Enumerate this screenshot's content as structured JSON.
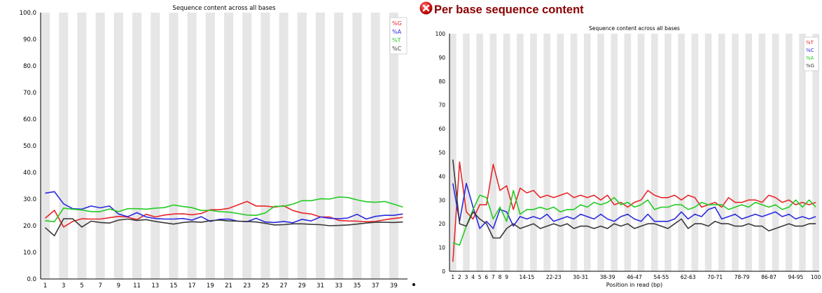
{
  "header": {
    "title": "Per base sequence content",
    "status_icon": "error-icon"
  },
  "chart_data": [
    {
      "type": "line",
      "title": "Sequence content across all bases",
      "xlabel": "",
      "ylabel": "",
      "ylim": [
        0,
        100
      ],
      "yticks": [
        "0.0",
        "10.0",
        "20.0",
        "30.0",
        "40.0",
        "50.0",
        "60.0",
        "70.0",
        "80.0",
        "90.0",
        "100.0"
      ],
      "x": [
        "1",
        "2",
        "3",
        "4",
        "5",
        "6",
        "7",
        "8",
        "9",
        "10",
        "11",
        "12",
        "13",
        "14",
        "15",
        "16",
        "17",
        "18",
        "19",
        "20",
        "21",
        "22",
        "23",
        "24",
        "25",
        "26",
        "27",
        "28",
        "29",
        "30",
        "31",
        "32",
        "33",
        "34",
        "35",
        "36",
        "37",
        "38",
        "39",
        "40"
      ],
      "xtick_labels": [
        "1",
        "3",
        "5",
        "7",
        "9",
        "11",
        "13",
        "15",
        "17",
        "19",
        "21",
        "23",
        "25",
        "27",
        "29",
        "31",
        "33",
        "35",
        "37",
        "39"
      ],
      "grid": "alternating vertical bands",
      "legend_position": "top-right",
      "series": [
        {
          "name": "%G",
          "color": "#e8262a",
          "values": [
            22.8,
            25.8,
            19.5,
            21.6,
            22.6,
            22.5,
            22.5,
            23.0,
            23.5,
            23.2,
            22.3,
            24.3,
            23.3,
            24.0,
            24.4,
            24.5,
            24.1,
            24.6,
            26.0,
            26.0,
            26.5,
            27.8,
            29.1,
            27.4,
            27.4,
            27.0,
            27.5,
            25.7,
            24.8,
            24.4,
            23.3,
            23.3,
            22.0,
            21.8,
            21.7,
            21.5,
            21.6,
            22.2,
            22.7,
            23.1
          ]
        },
        {
          "name": "%A",
          "color": "#2a2ae0",
          "values": [
            32.2,
            32.8,
            28.2,
            26.4,
            26.2,
            27.4,
            26.7,
            27.4,
            24.4,
            23.4,
            24.9,
            23.3,
            22.7,
            22.5,
            22.5,
            22.7,
            22.1,
            23.4,
            21.6,
            22.4,
            22.5,
            21.7,
            21.5,
            22.8,
            21.4,
            21.2,
            21.6,
            21.1,
            22.4,
            21.8,
            23.3,
            22.8,
            22.6,
            22.9,
            24.3,
            22.5,
            23.5,
            23.9,
            23.9,
            24.4
          ]
        },
        {
          "name": "%T",
          "color": "#22cc22",
          "values": [
            21.9,
            21.5,
            26.6,
            26.2,
            25.9,
            25.3,
            25.3,
            26.3,
            25.3,
            26.4,
            26.4,
            26.2,
            26.6,
            26.8,
            27.8,
            27.2,
            26.8,
            25.7,
            25.8,
            25.3,
            25.1,
            24.6,
            24.0,
            23.9,
            24.8,
            27.3,
            27.3,
            28.1,
            29.4,
            29.4,
            30.1,
            30.0,
            30.8,
            30.6,
            29.7,
            29.0,
            28.8,
            29.1,
            28.1,
            27.0
          ]
        },
        {
          "name": "%C",
          "color": "#3a3a3a",
          "values": [
            19.3,
            16.2,
            22.6,
            22.6,
            19.5,
            21.7,
            21.2,
            21.0,
            22.1,
            22.5,
            22.0,
            22.3,
            21.6,
            21.1,
            20.6,
            21.2,
            21.5,
            21.3,
            21.9,
            22.1,
            21.8,
            21.7,
            21.6,
            21.4,
            20.9,
            20.3,
            20.4,
            20.7,
            20.7,
            20.5,
            20.4,
            20.0,
            20.1,
            20.3,
            20.6,
            21.0,
            21.3,
            21.3,
            21.2,
            21.4
          ]
        }
      ]
    },
    {
      "type": "line",
      "title": "Sequence content across all bases",
      "xlabel": "Position in read (bp)",
      "ylabel": "",
      "ylim": [
        0,
        100
      ],
      "yticks": [
        "0",
        "10",
        "20",
        "30",
        "40",
        "50",
        "60",
        "70",
        "80",
        "90",
        "100"
      ],
      "x": [
        "1",
        "2",
        "3",
        "4",
        "5",
        "6",
        "7",
        "8",
        "9",
        "10-11",
        "12-13",
        "14-15",
        "16-17",
        "18-19",
        "20-21",
        "22-23",
        "24-25",
        "26-27",
        "28-29",
        "30-31",
        "32-33",
        "34-35",
        "36-37",
        "38-39",
        "40-41",
        "42-43",
        "44-45",
        "46-47",
        "48-49",
        "50-51",
        "52-53",
        "54-55",
        "56-57",
        "58-59",
        "60-61",
        "62-63",
        "64-65",
        "66-67",
        "68-69",
        "70-71",
        "72-73",
        "74-75",
        "76-77",
        "78-79",
        "80-81",
        "82-83",
        "84-85",
        "86-87",
        "88-89",
        "90-91",
        "92-93",
        "94-95",
        "96-97",
        "98-99",
        "100"
      ],
      "xtick_labels": [
        "1",
        "2",
        "3",
        "4",
        "5",
        "6",
        "7",
        "8",
        "9",
        "14-15",
        "22-23",
        "30-31",
        "38-39",
        "46-47",
        "54-55",
        "62-63",
        "70-71",
        "78-79",
        "86-87",
        "94-95",
        "100"
      ],
      "grid": "alternating vertical bands",
      "legend_position": "top-right",
      "series": [
        {
          "name": "%T",
          "color": "#e8262a",
          "values": [
            4,
            46,
            25,
            22,
            28,
            28,
            45,
            34,
            36,
            26,
            35,
            33,
            34,
            31,
            32,
            31,
            32,
            33,
            31,
            32,
            31,
            32,
            30,
            32,
            28,
            29,
            27,
            29,
            30,
            34,
            32,
            31,
            31,
            32,
            30,
            32,
            31,
            27,
            28,
            29,
            27,
            31,
            29,
            29,
            30,
            30,
            29,
            32,
            31,
            29,
            30,
            28,
            29,
            28,
            29
          ]
        },
        {
          "name": "%C",
          "color": "#2a2ae0",
          "values": [
            37,
            21,
            37,
            27,
            18,
            21,
            18,
            26,
            25,
            19,
            23,
            22,
            23,
            22,
            24,
            21,
            22,
            23,
            22,
            24,
            23,
            22,
            24,
            22,
            21,
            23,
            24,
            22,
            21,
            24,
            21,
            21,
            21,
            22,
            25,
            22,
            24,
            23,
            26,
            27,
            22,
            23,
            24,
            22,
            23,
            24,
            23,
            24,
            25,
            23,
            24,
            22,
            23,
            22,
            23
          ]
        },
        {
          "name": "%A",
          "color": "#22cc22",
          "values": [
            12,
            11,
            19,
            26,
            32,
            31,
            22,
            27,
            21,
            34,
            24,
            26,
            26,
            27,
            26,
            27,
            25,
            26,
            26,
            28,
            27,
            29,
            28,
            29,
            31,
            28,
            29,
            27,
            28,
            30,
            26,
            27,
            27,
            28,
            28,
            26,
            27,
            29,
            28,
            28,
            28,
            26,
            27,
            28,
            27,
            29,
            28,
            27,
            28,
            26,
            27,
            30,
            27,
            30,
            27
          ]
        },
        {
          "name": "%G",
          "color": "#3a3a3a",
          "values": [
            47,
            20,
            19,
            25,
            22,
            20,
            14,
            14,
            18,
            20,
            18,
            19,
            20,
            18,
            19,
            20,
            19,
            20,
            18,
            19,
            19,
            18,
            19,
            18,
            20,
            19,
            20,
            18,
            19,
            20,
            20,
            19,
            18,
            20,
            22,
            18,
            20,
            20,
            19,
            21,
            20,
            20,
            19,
            19,
            20,
            19,
            19,
            17,
            18,
            19,
            20,
            19,
            19,
            20,
            20
          ]
        }
      ]
    }
  ]
}
